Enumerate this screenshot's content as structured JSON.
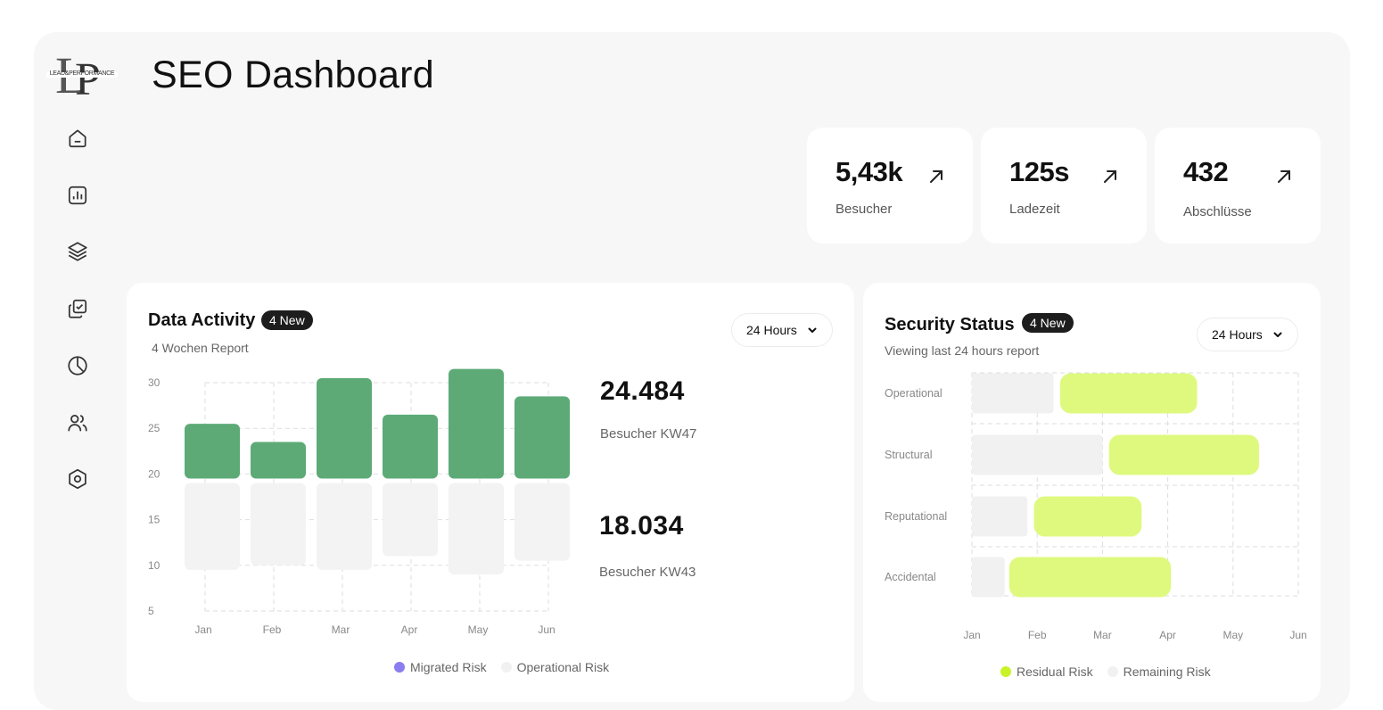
{
  "app": {
    "logo_text": "LEAD&PERFORMANCE",
    "title": "SEO Dashboard"
  },
  "sidebar": {
    "items": [
      {
        "icon": "home-icon"
      },
      {
        "icon": "bar-chart-icon"
      },
      {
        "icon": "layers-icon"
      },
      {
        "icon": "check-copy-icon"
      },
      {
        "icon": "pie-chart-icon"
      },
      {
        "icon": "users-icon"
      },
      {
        "icon": "settings-hexagon-icon"
      }
    ]
  },
  "stats": [
    {
      "value": "5,43k",
      "label": "Besucher",
      "icon": "arrow-up-right-icon"
    },
    {
      "value": "125s",
      "label": "Ladezeit",
      "icon": "arrow-up-right-icon"
    },
    {
      "value": "432",
      "label": "Abschlüsse",
      "icon": "arrow-up-right-icon"
    }
  ],
  "data_activity": {
    "title": "Data Activity",
    "badge": "4 New",
    "subtitle": "4 Wochen Report",
    "dropdown": "24 Hours",
    "metric1": {
      "value": "24.484",
      "label": "Besucher KW47"
    },
    "metric2": {
      "value": "18.034",
      "label": "Besucher KW43"
    },
    "legend": [
      {
        "label": "Migrated Risk",
        "color": "#8b7cf0"
      },
      {
        "label": "Operational Risk",
        "color": "#f1f1f1"
      }
    ]
  },
  "security_status": {
    "title": "Security Status",
    "badge": "4 New",
    "subtitle": "Viewing last 24 hours report",
    "dropdown": "24 Hours",
    "legend": [
      {
        "label": "Residual Risk",
        "color": "#c9f227"
      },
      {
        "label": "Remaining Risk",
        "color": "#f1f1f1"
      }
    ]
  },
  "chart_data": [
    {
      "type": "bar",
      "categories": [
        "Jan",
        "Feb",
        "Mar",
        "Apr",
        "May",
        "Jun"
      ],
      "yticks": [
        30,
        25,
        20,
        15,
        10,
        5
      ],
      "ylim": [
        5,
        30
      ],
      "series": [
        {
          "name": "Migrated Risk",
          "color": "#5daa77",
          "ranges": [
            [
              19.5,
              25.5
            ],
            [
              19.5,
              23.5
            ],
            [
              19.5,
              30.5
            ],
            [
              19.5,
              26.5
            ],
            [
              19.5,
              31.5
            ],
            [
              19.5,
              28.5
            ]
          ]
        },
        {
          "name": "Operational Risk",
          "color": "#f3f3f3",
          "ranges": [
            [
              9.5,
              19
            ],
            [
              10,
              19
            ],
            [
              9.5,
              19
            ],
            [
              11,
              19
            ],
            [
              9,
              19
            ],
            [
              10.5,
              19
            ]
          ]
        }
      ]
    },
    {
      "type": "bar",
      "orientation": "horizontal",
      "categories": [
        "Operational",
        "Structural",
        "Reputational",
        "Accidental"
      ],
      "xticks": [
        "Jan",
        "Feb",
        "Mar",
        "Apr",
        "May",
        "Jun"
      ],
      "series": [
        {
          "name": "Remaining Risk",
          "color": "#f1f1f1",
          "ranges": [
            [
              0,
              1.25
            ],
            [
              0,
              2
            ],
            [
              0,
              0.85
            ],
            [
              0,
              0.5
            ]
          ]
        },
        {
          "name": "Residual Risk",
          "color": "#dff97f",
          "ranges": [
            [
              1.35,
              3.45
            ],
            [
              2.1,
              4.4
            ],
            [
              0.95,
              2.6
            ],
            [
              0.57,
              3.05
            ]
          ]
        }
      ]
    }
  ]
}
